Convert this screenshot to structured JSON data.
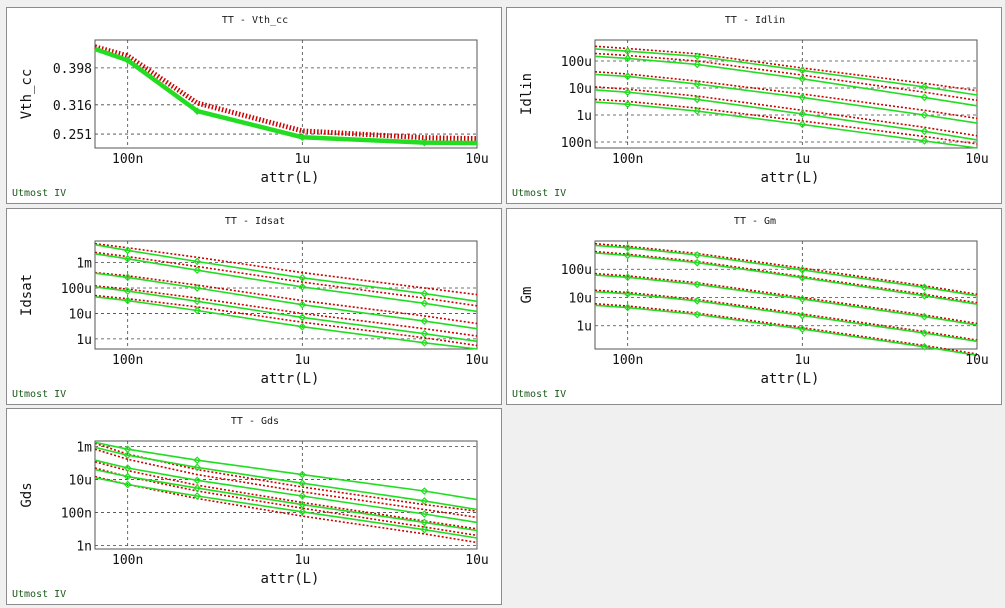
{
  "footer_label": "Utmost IV",
  "colors": {
    "simulated": "#22dd22",
    "measured": "#cc0000"
  },
  "chart_data": [
    {
      "id": "vth",
      "type": "line",
      "title": "TT - Vth_cc",
      "xlabel": "attr(L)",
      "ylabel": "Vth_cc",
      "xscale": "log",
      "yscale": "linear",
      "xlim": [
        6.5e-08,
        1e-05
      ],
      "ylim": [
        0.22,
        0.46
      ],
      "xticks": [
        {
          "v": 1e-07,
          "label": "100n"
        },
        {
          "v": 1e-06,
          "label": "1u"
        },
        {
          "v": 1e-05,
          "label": "10u"
        }
      ],
      "yticks": [
        {
          "v": 0.251,
          "label": "0.251"
        },
        {
          "v": 0.316,
          "label": "0.316"
        },
        {
          "v": 0.398,
          "label": "0.398"
        }
      ],
      "grid": true,
      "series": [
        {
          "kind": "measured",
          "x": [
            6.5e-08,
            1e-07,
            2.5e-07,
            1e-06,
            5e-06,
            1e-05
          ],
          "y": [
            0.445,
            0.425,
            0.32,
            0.258,
            0.243,
            0.241
          ]
        },
        {
          "kind": "simulated",
          "x": [
            6.5e-08,
            1e-07,
            2.5e-07,
            1e-06,
            5e-06,
            1e-05
          ],
          "y": [
            0.44,
            0.415,
            0.302,
            0.244,
            0.232,
            0.231
          ]
        }
      ]
    },
    {
      "id": "idlin",
      "type": "line",
      "title": "TT - Idlin",
      "xlabel": "attr(L)",
      "ylabel": "Idlin",
      "xscale": "log",
      "yscale": "log",
      "xlim": [
        6.5e-08,
        1e-05
      ],
      "ylim": [
        6e-08,
        0.0006
      ],
      "xticks": [
        {
          "v": 1e-07,
          "label": "100n"
        },
        {
          "v": 1e-06,
          "label": "1u"
        },
        {
          "v": 1e-05,
          "label": "10u"
        }
      ],
      "yticks": [
        {
          "v": 1e-07,
          "label": "100n"
        },
        {
          "v": 1e-06,
          "label": "1u"
        },
        {
          "v": 1e-05,
          "label": "10u"
        },
        {
          "v": 0.0001,
          "label": "100u"
        }
      ],
      "grid": true,
      "series": [
        {
          "kind": "measured",
          "x": [
            6.5e-08,
            1e-07,
            2.5e-07,
            1e-06,
            5e-06,
            1e-05
          ],
          "y": [
            0.00035,
            0.00029,
            0.000185,
            5.5e-05,
            1.5e-05,
            8e-06
          ]
        },
        {
          "kind": "simulated",
          "x": [
            6.5e-08,
            1e-07,
            2.5e-07,
            1e-06,
            5e-06,
            1e-05
          ],
          "y": [
            0.00028,
            0.00023,
            0.00015,
            4.5e-05,
            1.1e-05,
            5.5e-06
          ]
        },
        {
          "kind": "measured",
          "x": [
            6.5e-08,
            1e-07,
            2.5e-07,
            1e-06,
            5e-06,
            1e-05
          ],
          "y": [
            0.00019,
            0.00016,
            0.0001,
            3e-05,
            7e-06,
            3.5e-06
          ]
        },
        {
          "kind": "simulated",
          "x": [
            6.5e-08,
            1e-07,
            2.5e-07,
            1e-06,
            5e-06,
            1e-05
          ],
          "y": [
            0.00015,
            0.000125,
            7.5e-05,
            2.2e-05,
            4.5e-06,
            2.2e-06
          ]
        },
        {
          "kind": "measured",
          "x": [
            6.5e-08,
            1e-07,
            2.5e-07,
            1e-06,
            5e-06,
            1e-05
          ],
          "y": [
            4e-05,
            3.3e-05,
            1.8e-05,
            6e-06,
            1.5e-06,
            7.5e-07
          ]
        },
        {
          "kind": "simulated",
          "x": [
            6.5e-08,
            1e-07,
            2.5e-07,
            1e-06,
            5e-06,
            1e-05
          ],
          "y": [
            3.2e-05,
            2.7e-05,
            1.4e-05,
            4.5e-06,
            1e-06,
            5e-07
          ]
        },
        {
          "kind": "measured",
          "x": [
            6.5e-08,
            1e-07,
            2.5e-07,
            1e-06,
            5e-06,
            1e-05
          ],
          "y": [
            1.1e-05,
            9e-06,
            5e-06,
            1.5e-06,
            3.5e-07,
            1.7e-07
          ]
        },
        {
          "kind": "simulated",
          "x": [
            6.5e-08,
            1e-07,
            2.5e-07,
            1e-06,
            5e-06,
            1e-05
          ],
          "y": [
            8.5e-06,
            7e-06,
            3.8e-06,
            1.1e-06,
            2.5e-07,
            1.2e-07
          ]
        },
        {
          "kind": "measured",
          "x": [
            6.5e-08,
            1e-07,
            2.5e-07,
            1e-06,
            5e-06,
            1e-05
          ],
          "y": [
            3.8e-06,
            3.2e-06,
            1.8e-06,
            6e-07,
            1.6e-07,
            8.5e-08
          ]
        },
        {
          "kind": "simulated",
          "x": [
            6.5e-08,
            1e-07,
            2.5e-07,
            1e-06,
            5e-06,
            1e-05
          ],
          "y": [
            3e-06,
            2.5e-06,
            1.4e-06,
            4.5e-07,
            1.1e-07,
            6e-08
          ]
        }
      ]
    },
    {
      "id": "idsat",
      "type": "line",
      "title": "TT - Idsat",
      "xlabel": "attr(L)",
      "ylabel": "Idsat",
      "xscale": "log",
      "yscale": "log",
      "xlim": [
        6.5e-08,
        1e-05
      ],
      "ylim": [
        4e-07,
        0.007
      ],
      "xticks": [
        {
          "v": 1e-07,
          "label": "100n"
        },
        {
          "v": 1e-06,
          "label": "1u"
        },
        {
          "v": 1e-05,
          "label": "10u"
        }
      ],
      "yticks": [
        {
          "v": 1e-06,
          "label": "1u"
        },
        {
          "v": 1e-05,
          "label": "10u"
        },
        {
          "v": 0.0001,
          "label": "100u"
        },
        {
          "v": 0.001,
          "label": "1m"
        }
      ],
      "grid": true,
      "series": [
        {
          "kind": "measured",
          "x": [
            6.5e-08,
            1e-07,
            2.5e-07,
            1e-06,
            5e-06,
            1e-05
          ],
          "y": [
            0.0055,
            0.0038,
            0.0016,
            0.0004,
            0.0001,
            5.5e-05
          ]
        },
        {
          "kind": "simulated",
          "x": [
            6.5e-08,
            1e-07,
            2.5e-07,
            1e-06,
            5e-06,
            1e-05
          ],
          "y": [
            0.005,
            0.003,
            0.0011,
            0.00025,
            6e-05,
            3e-05
          ]
        },
        {
          "kind": "measured",
          "x": [
            6.5e-08,
            1e-07,
            2.5e-07,
            1e-06,
            5e-06,
            1e-05
          ],
          "y": [
            0.0025,
            0.0017,
            0.0007,
            0.00017,
            4e-05,
            2e-05
          ]
        },
        {
          "kind": "simulated",
          "x": [
            6.5e-08,
            1e-07,
            2.5e-07,
            1e-06,
            5e-06,
            1e-05
          ],
          "y": [
            0.0022,
            0.0014,
            0.0005,
            0.00011,
            2.5e-05,
            1.2e-05
          ]
        },
        {
          "kind": "measured",
          "x": [
            6.5e-08,
            1e-07,
            2.5e-07,
            1e-06,
            5e-06,
            1e-05
          ],
          "y": [
            0.0004,
            0.0003,
            0.00013,
            3.2e-05,
            8e-06,
            4e-06
          ]
        },
        {
          "kind": "simulated",
          "x": [
            6.5e-08,
            1e-07,
            2.5e-07,
            1e-06,
            5e-06,
            1e-05
          ],
          "y": [
            0.00038,
            0.00026,
            0.0001,
            2.2e-05,
            5e-06,
            2.5e-06
          ]
        },
        {
          "kind": "measured",
          "x": [
            6.5e-08,
            1e-07,
            2.5e-07,
            1e-06,
            5e-06,
            1e-05
          ],
          "y": [
            0.00012,
            9e-05,
            4e-05,
            1e-05,
            2.5e-06,
            1.3e-06
          ]
        },
        {
          "kind": "simulated",
          "x": [
            6.5e-08,
            1e-07,
            2.5e-07,
            1e-06,
            5e-06,
            1e-05
          ],
          "y": [
            0.00011,
            7.5e-05,
            3e-05,
            7e-06,
            1.6e-06,
            8e-07
          ]
        },
        {
          "kind": "measured",
          "x": [
            6.5e-08,
            1e-07,
            2.5e-07,
            1e-06,
            5e-06,
            1e-05
          ],
          "y": [
            5e-05,
            3.8e-05,
            1.8e-05,
            4.5e-06,
            1.1e-06,
            5.5e-07
          ]
        },
        {
          "kind": "simulated",
          "x": [
            6.5e-08,
            1e-07,
            2.5e-07,
            1e-06,
            5e-06,
            1e-05
          ],
          "y": [
            4.5e-05,
            3.2e-05,
            1.3e-05,
            3e-06,
            7e-07,
            4e-07
          ]
        }
      ]
    },
    {
      "id": "gm",
      "type": "line",
      "title": "TT - Gm",
      "xlabel": "attr(L)",
      "ylabel": "Gm",
      "xscale": "log",
      "yscale": "log",
      "xlim": [
        6.5e-08,
        1e-05
      ],
      "ylim": [
        1.5e-07,
        0.001
      ],
      "xticks": [
        {
          "v": 1e-07,
          "label": "100n"
        },
        {
          "v": 1e-06,
          "label": "1u"
        },
        {
          "v": 1e-05,
          "label": "10u"
        }
      ],
      "yticks": [
        {
          "v": 1e-06,
          "label": "1u"
        },
        {
          "v": 1e-05,
          "label": "10u"
        },
        {
          "v": 0.0001,
          "label": "100u"
        }
      ],
      "grid": true,
      "series": [
        {
          "kind": "measured",
          "x": [
            6.5e-08,
            1e-07,
            2.5e-07,
            1e-06,
            5e-06,
            1e-05
          ],
          "y": [
            0.0008,
            0.00065,
            0.00036,
            0.00011,
            2.6e-05,
            1.3e-05
          ]
        },
        {
          "kind": "simulated",
          "x": [
            6.5e-08,
            1e-07,
            2.5e-07,
            1e-06,
            5e-06,
            1e-05
          ],
          "y": [
            0.0007,
            0.00058,
            0.00032,
            9.5e-05,
            2.3e-05,
            1.15e-05
          ]
        },
        {
          "kind": "measured",
          "x": [
            6.5e-08,
            1e-07,
            2.5e-07,
            1e-06,
            5e-06,
            1e-05
          ],
          "y": [
            0.00042,
            0.00034,
            0.00019,
            5.5e-05,
            1.3e-05,
            6.5e-06
          ]
        },
        {
          "kind": "simulated",
          "x": [
            6.5e-08,
            1e-07,
            2.5e-07,
            1e-06,
            5e-06,
            1e-05
          ],
          "y": [
            0.00038,
            0.00031,
            0.00017,
            5e-05,
            1.15e-05,
            5.8e-06
          ]
        },
        {
          "kind": "measured",
          "x": [
            6.5e-08,
            1e-07,
            2.5e-07,
            1e-06,
            5e-06,
            1e-05
          ],
          "y": [
            7e-05,
            5.8e-05,
            3.3e-05,
            1e-05,
            2.4e-06,
            1.2e-06
          ]
        },
        {
          "kind": "simulated",
          "x": [
            6.5e-08,
            1e-07,
            2.5e-07,
            1e-06,
            5e-06,
            1e-05
          ],
          "y": [
            6.2e-05,
            5.2e-05,
            2.9e-05,
            8.8e-06,
            2.1e-06,
            1.05e-06
          ]
        },
        {
          "kind": "measured",
          "x": [
            6.5e-08,
            1e-07,
            2.5e-07,
            1e-06,
            5e-06,
            1e-05
          ],
          "y": [
            1.8e-05,
            1.5e-05,
            8.5e-06,
            2.6e-06,
            6.2e-07,
            3.1e-07
          ]
        },
        {
          "kind": "simulated",
          "x": [
            6.5e-08,
            1e-07,
            2.5e-07,
            1e-06,
            5e-06,
            1e-05
          ],
          "y": [
            1.6e-05,
            1.35e-05,
            7.6e-06,
            2.3e-06,
            5.5e-07,
            2.8e-07
          ]
        },
        {
          "kind": "measured",
          "x": [
            6.5e-08,
            1e-07,
            2.5e-07,
            1e-06,
            5e-06,
            1e-05
          ],
          "y": [
            6e-06,
            5e-06,
            2.8e-06,
            8.5e-07,
            2e-07,
            1e-07
          ]
        },
        {
          "kind": "simulated",
          "x": [
            6.5e-08,
            1e-07,
            2.5e-07,
            1e-06,
            5e-06,
            1e-05
          ],
          "y": [
            5.3e-06,
            4.4e-06,
            2.5e-06,
            7.6e-07,
            1.8e-07,
            9e-08
          ]
        }
      ]
    },
    {
      "id": "gds",
      "type": "line",
      "title": "TT - Gds",
      "xlabel": "attr(L)",
      "ylabel": "Gds",
      "xscale": "log",
      "yscale": "log",
      "xlim": [
        6.5e-08,
        1e-05
      ],
      "ylim": [
        6e-10,
        0.0022
      ],
      "xticks": [
        {
          "v": 1e-07,
          "label": "100n"
        },
        {
          "v": 1e-06,
          "label": "1u"
        },
        {
          "v": 1e-05,
          "label": "10u"
        }
      ],
      "yticks": [
        {
          "v": 1e-09,
          "label": "1n"
        },
        {
          "v": 1e-07,
          "label": "100n"
        },
        {
          "v": 1e-05,
          "label": "10u"
        },
        {
          "v": 0.001,
          "label": "1m"
        }
      ],
      "grid": true,
      "series": [
        {
          "kind": "measured",
          "x": [
            6.5e-08,
            1e-07,
            2.5e-07,
            1e-06,
            5e-06,
            1e-05
          ],
          "y": [
            0.0016,
            0.00035,
            4e-05,
            3.5e-06,
            3e-07,
            1.2e-07
          ]
        },
        {
          "kind": "simulated",
          "x": [
            6.5e-08,
            1e-07,
            2.5e-07,
            1e-06,
            5e-06,
            1e-05
          ],
          "y": [
            0.0018,
            0.0007,
            0.00015,
            2e-05,
            2e-06,
            6e-07
          ]
        },
        {
          "kind": "measured",
          "x": [
            6.5e-08,
            1e-07,
            2.5e-07,
            1e-06,
            5e-06,
            1e-05
          ],
          "y": [
            0.0007,
            0.00017,
            2e-05,
            1.8e-06,
            1.5e-07,
            5e-08
          ]
        },
        {
          "kind": "simulated",
          "x": [
            6.5e-08,
            1e-07,
            2.5e-07,
            1e-06,
            5e-06,
            1e-05
          ],
          "y": [
            0.0009,
            0.0003,
            5.5e-05,
            6e-06,
            5e-07,
            1.5e-07
          ]
        },
        {
          "kind": "measured",
          "x": [
            6.5e-08,
            1e-07,
            2.5e-07,
            1e-06,
            5e-06,
            1e-05
          ],
          "y": [
            0.00012,
            3.5e-05,
            4.5e-06,
            4e-07,
            3e-08,
            1e-08
          ]
        },
        {
          "kind": "simulated",
          "x": [
            6.5e-08,
            1e-07,
            2.5e-07,
            1e-06,
            5e-06,
            1e-05
          ],
          "y": [
            0.00015,
            5e-05,
            9e-06,
            1e-06,
            8e-08,
            2.5e-08
          ]
        },
        {
          "kind": "measured",
          "x": [
            6.5e-08,
            1e-07,
            2.5e-07,
            1e-06,
            5e-06,
            1e-05
          ],
          "y": [
            5e-05,
            1.5e-05,
            2e-06,
            1.8e-07,
            1.3e-08,
            4e-09
          ]
        },
        {
          "kind": "simulated",
          "x": [
            6.5e-08,
            1e-07,
            2.5e-07,
            1e-06,
            5e-06,
            1e-05
          ],
          "y": [
            4e-05,
            1.5e-05,
            3e-06,
            3e-07,
            2.5e-08,
            8e-09
          ]
        },
        {
          "kind": "measured",
          "x": [
            6.5e-08,
            1e-07,
            2.5e-07,
            1e-06,
            5e-06,
            1e-05
          ],
          "y": [
            1.5e-05,
            5e-06,
            7e-07,
            6e-08,
            5e-09,
            1.5e-09
          ]
        },
        {
          "kind": "simulated",
          "x": [
            6.5e-08,
            1e-07,
            2.5e-07,
            1e-06,
            5e-06,
            1e-05
          ],
          "y": [
            1.3e-05,
            5e-06,
            1e-06,
            1.1e-07,
            9e-09,
            2.8e-09
          ]
        }
      ]
    }
  ]
}
